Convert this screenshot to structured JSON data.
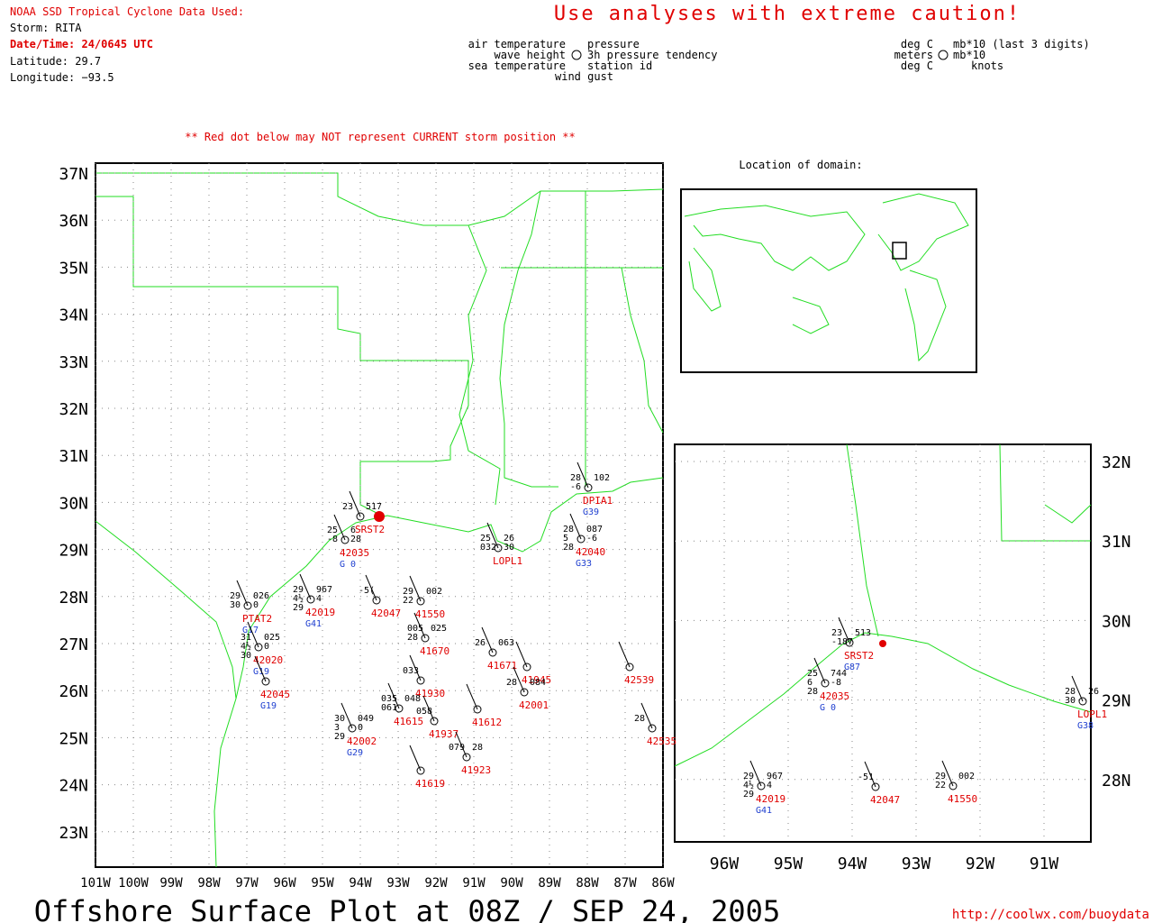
{
  "header": {
    "title": "NOAA SSD Tropical Cyclone Data Used:",
    "storm": "Storm: RITA",
    "datetime": "Date/Time: 24/0645 UTC",
    "latitude": "Latitude: 29.7",
    "longitude": "Longitude: −93.5",
    "caution": "Use analyses with extreme caution!"
  },
  "legend": {
    "left": [
      "air temperature",
      "wave height",
      "sea temperature"
    ],
    "center": [
      "pressure",
      "3h pressure tendency",
      "station id",
      "wind gust"
    ],
    "units_left": [
      "deg C",
      "meters",
      "deg C"
    ],
    "units_right": [
      "mb*10 (last 3 digits)",
      "mb*10",
      "knots"
    ]
  },
  "warning": "** Red dot below may NOT represent CURRENT storm position **",
  "main_map": {
    "lat_labels": [
      "37N",
      "36N",
      "35N",
      "34N",
      "33N",
      "32N",
      "31N",
      "30N",
      "29N",
      "28N",
      "27N",
      "26N",
      "25N",
      "24N",
      "23N"
    ],
    "lon_labels": [
      "101W",
      "100W",
      "99W",
      "98W",
      "97W",
      "96W",
      "95W",
      "94W",
      "93W",
      "92W",
      "91W",
      "90W",
      "89W",
      "88W",
      "87W",
      "86W"
    ],
    "stations": [
      {
        "id": "SRST2",
        "obs": [
          "23",
          "517"
        ]
      },
      {
        "id": "42035",
        "obs": [
          "25",
          "6",
          "-8",
          "28",
          "G 0"
        ]
      },
      {
        "id": "PTAT2",
        "obs": [
          "29",
          "026",
          "30",
          "0",
          "G17"
        ]
      },
      {
        "id": "42019",
        "obs": [
          "29",
          "967",
          "4½",
          "4",
          "29",
          "G41"
        ]
      },
      {
        "id": "42047",
        "obs": [
          "-5("
        ]
      },
      {
        "id": "41550",
        "obs": [
          "29",
          "002",
          "22"
        ]
      },
      {
        "id": "42020",
        "obs": [
          "31",
          "025",
          "4½",
          "0",
          "30",
          "G19"
        ]
      },
      {
        "id": "42045",
        "obs": [
          "G19"
        ]
      },
      {
        "id": "42002",
        "obs": [
          "30",
          "049",
          "3",
          "0",
          "29",
          "G29"
        ]
      },
      {
        "id": "DPIA1",
        "obs": [
          "28",
          "102",
          "-6",
          "G39"
        ]
      },
      {
        "id": "42040",
        "obs": [
          "28",
          "087",
          "5",
          "-6",
          "28",
          "G33"
        ]
      },
      {
        "id": "LOPL1",
        "obs": [
          "25",
          "26",
          "032",
          "30"
        ]
      },
      {
        "id": "41670",
        "obs": [
          "005",
          "025",
          "28"
        ]
      },
      {
        "id": "41671",
        "obs": [
          "26",
          "063"
        ]
      },
      {
        "id": "41945",
        "obs": []
      },
      {
        "id": "41930",
        "obs": [
          "033"
        ]
      },
      {
        "id": "42001",
        "obs": [
          "28",
          "084"
        ]
      },
      {
        "id": "41612",
        "obs": []
      },
      {
        "id": "41615",
        "obs": [
          "035",
          "048",
          "061"
        ]
      },
      {
        "id": "41937",
        "obs": [
          "058"
        ]
      },
      {
        "id": "41923",
        "obs": [
          "079",
          "28"
        ]
      },
      {
        "id": "41619",
        "obs": []
      },
      {
        "id": "42539",
        "obs": []
      },
      {
        "id": "42535",
        "obs": [
          "28"
        ]
      }
    ]
  },
  "inset_title": "Location of domain:",
  "zoom_map": {
    "lat_labels": [
      "32N",
      "31N",
      "30N",
      "29N",
      "28N"
    ],
    "lon_labels": [
      "96W",
      "95W",
      "94W",
      "93W",
      "92W",
      "91W"
    ],
    "stations": [
      {
        "id": "SRST2",
        "obs": [
          "23",
          "513",
          "-187",
          "G87"
        ]
      },
      {
        "id": "42035",
        "obs": [
          "25",
          "744",
          "6",
          "-8",
          "28",
          "G 0"
        ]
      },
      {
        "id": "42019",
        "obs": [
          "29",
          "967",
          "4½",
          "4",
          "29",
          "G41"
        ]
      },
      {
        "id": "42047",
        "obs": [
          "-51"
        ]
      },
      {
        "id": "41550",
        "obs": [
          "29",
          "002",
          "22"
        ]
      },
      {
        "id": "LOPL1",
        "obs": [
          "28",
          "26",
          "30",
          "G38"
        ]
      }
    ]
  },
  "footer": {
    "title": "Offshore Surface Plot at 08Z / SEP 24, 2005",
    "url": "http://coolwx.com/buoydata"
  }
}
